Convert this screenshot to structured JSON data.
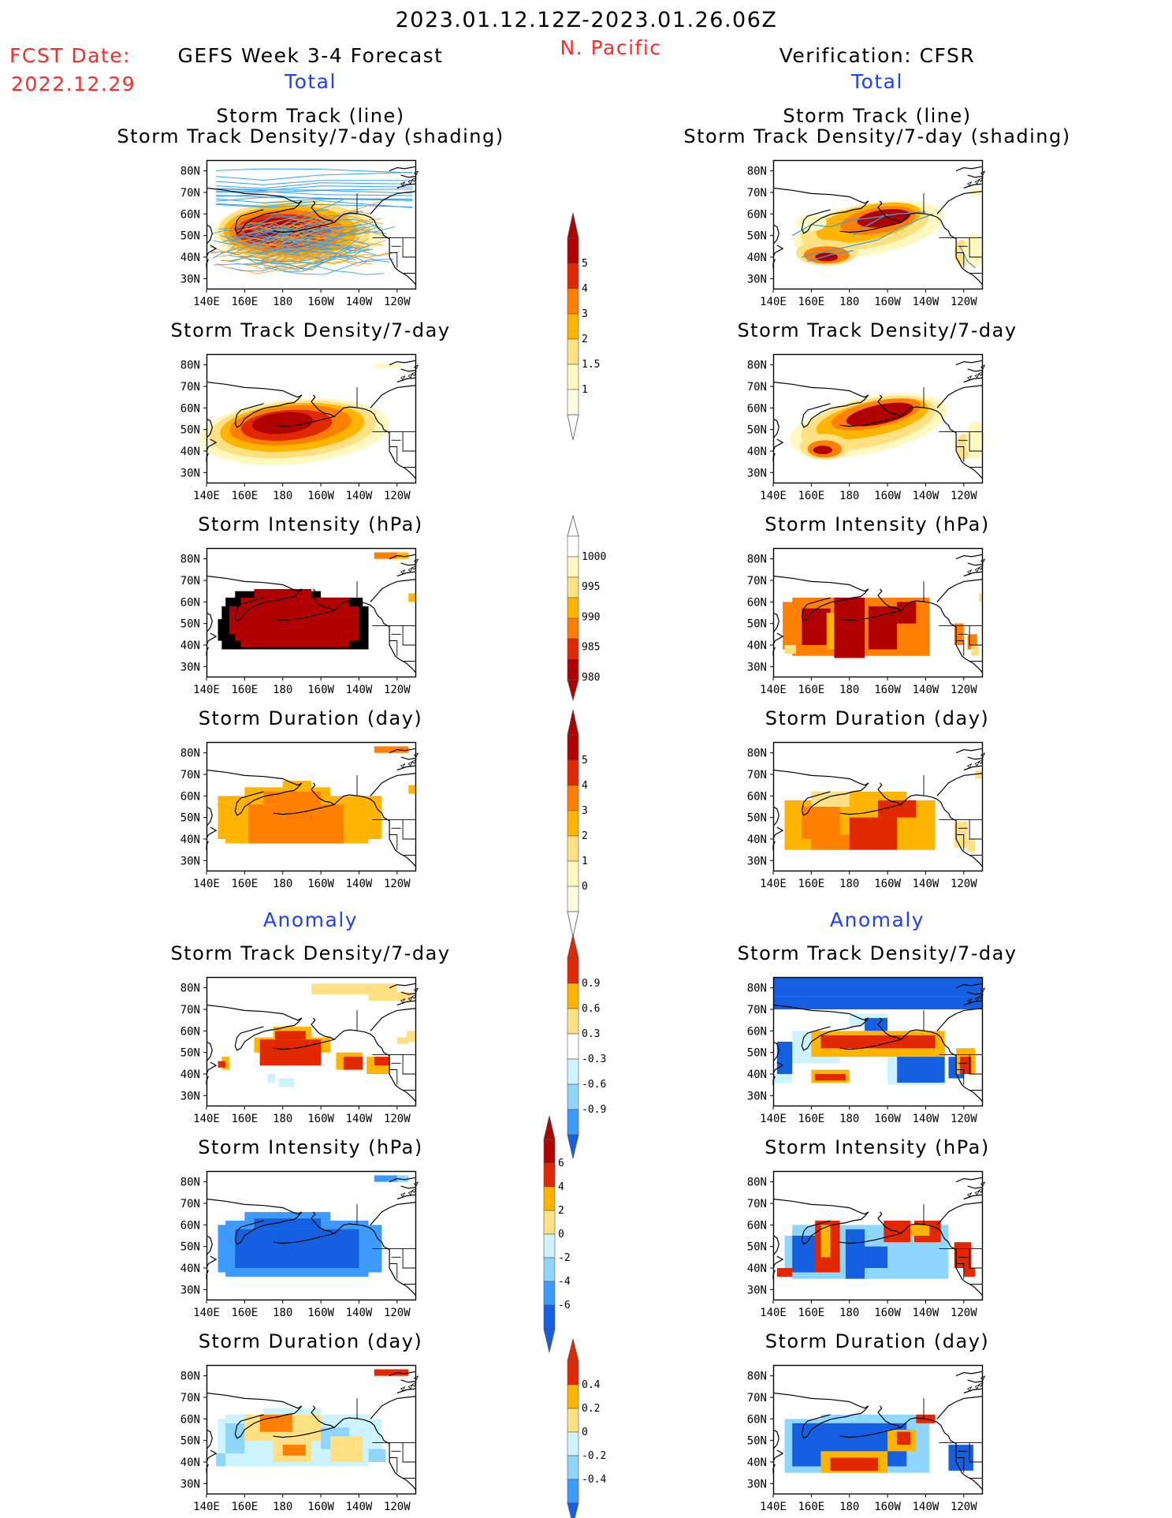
{
  "header": {
    "period": "2023.01.12.12Z-2023.01.26.06Z",
    "region": "N. Pacific",
    "fcst_date_label": "FCST Date:",
    "fcst_date": "2022.12.29",
    "model_title": "GEFS Week 3-4 Forecast",
    "verification_title": "Verification: CFSR",
    "total_left": "Total",
    "total_right": "Total",
    "anomaly_left": "Anomaly",
    "anomaly_right": "Anomaly"
  },
  "axes": {
    "lat_ticks": [
      "80N",
      "70N",
      "60N",
      "50N",
      "40N",
      "30N"
    ],
    "lon_ticks": [
      "140E",
      "160E",
      "180",
      "160W",
      "140W",
      "120W"
    ]
  },
  "colors": {
    "warm": [
      "#fff8c0",
      "#ffe082",
      "#ffb400",
      "#ff7f00",
      "#e22800",
      "#b00000"
    ],
    "cool": [
      "#cdf3ff",
      "#8fd6ff",
      "#3d9bff",
      "#1460e0"
    ],
    "track_forecast": [
      "#3aa0e6",
      "#f0a030"
    ],
    "track_verif": "#3aa0e6"
  },
  "colorbars": [
    {
      "id": "density_total",
      "labels": [
        "5",
        "4",
        "3",
        "2",
        "1.5",
        "1"
      ]
    },
    {
      "id": "intensity_total",
      "labels": [
        "1000",
        "995",
        "990",
        "985",
        "980"
      ]
    },
    {
      "id": "duration_total",
      "labels": [
        "5",
        "4",
        "3",
        "2",
        "1",
        "0"
      ]
    },
    {
      "id": "density_anom",
      "labels": [
        "0.9",
        "0.6",
        "0.3",
        "-0.3",
        "-0.6",
        "-0.9"
      ]
    },
    {
      "id": "intensity_anom",
      "labels": [
        "6",
        "4",
        "2",
        "0",
        "-2",
        "-4",
        "-6"
      ]
    },
    {
      "id": "duration_anom",
      "labels": [
        "0.4",
        "0.2",
        "0",
        "-0.2",
        "-0.4"
      ]
    }
  ],
  "chart_data": [
    {
      "id": "fc_track",
      "type": "heatmap",
      "title_line1": "Storm Track (line)",
      "title_line2": "Storm Track Density/7-day (shading)",
      "variable": "storm track density + tracks",
      "source": "GEFS",
      "peak_region": "45N-55N, 165E-160W",
      "max_level": "5"
    },
    {
      "id": "vf_track",
      "type": "heatmap",
      "title_line1": "Storm Track (line)",
      "title_line2": "Storm Track Density/7-day (shading)",
      "variable": "storm track density + tracks",
      "source": "CFSR",
      "peak_region": "55N-60N, 170W-145W",
      "max_level": "5"
    },
    {
      "id": "fc_density",
      "type": "heatmap",
      "title": "Storm Track Density/7-day",
      "source": "GEFS",
      "peak_region": "50N-55N, 170E-165W"
    },
    {
      "id": "vf_density",
      "type": "heatmap",
      "title": "Storm Track Density/7-day",
      "source": "CFSR",
      "peak_region": "55N-60N, 175W-145W and 40N, 165E"
    },
    {
      "id": "fc_intensity",
      "type": "heatmap",
      "title": "Storm Intensity (hPa)",
      "source": "GEFS",
      "range_hPa": [
        980,
        1000
      ]
    },
    {
      "id": "vf_intensity",
      "type": "heatmap",
      "title": "Storm Intensity (hPa)",
      "source": "CFSR",
      "range_hPa": [
        980,
        1000
      ]
    },
    {
      "id": "fc_duration",
      "type": "heatmap",
      "title": "Storm Duration (day)",
      "source": "GEFS",
      "range_day": [
        0,
        5
      ]
    },
    {
      "id": "vf_duration",
      "type": "heatmap",
      "title": "Storm Duration (day)",
      "source": "CFSR",
      "range_day": [
        0,
        5
      ]
    },
    {
      "id": "fc_density_anom",
      "type": "heatmap",
      "title": "Storm Track Density/7-day",
      "source": "GEFS",
      "range": [
        -0.9,
        0.9
      ]
    },
    {
      "id": "vf_density_anom",
      "type": "heatmap",
      "title": "Storm Track Density/7-day",
      "source": "CFSR",
      "range": [
        -0.9,
        0.9
      ]
    },
    {
      "id": "fc_intensity_anom",
      "type": "heatmap",
      "title": "Storm Intensity (hPa)",
      "source": "GEFS",
      "range_hPa": [
        -6,
        6
      ]
    },
    {
      "id": "vf_intensity_anom",
      "type": "heatmap",
      "title": "Storm Intensity (hPa)",
      "source": "CFSR",
      "range_hPa": [
        -6,
        6
      ]
    },
    {
      "id": "fc_duration_anom",
      "type": "heatmap",
      "title": "Storm Duration (day)",
      "source": "GEFS",
      "range_day": [
        -0.4,
        0.4
      ]
    },
    {
      "id": "vf_duration_anom",
      "type": "heatmap",
      "title": "Storm Duration (day)",
      "source": "CFSR",
      "range_day": [
        -0.4,
        0.4
      ]
    }
  ]
}
